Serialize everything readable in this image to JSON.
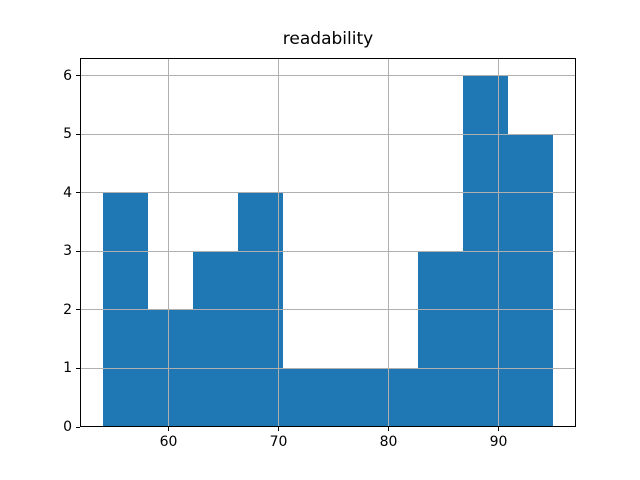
{
  "window": {
    "kind": "matplotlib-figure",
    "background": "#ffffff"
  },
  "chart_data": {
    "type": "bar",
    "subtype": "histogram",
    "title": "readability",
    "xlabel": "",
    "ylabel": "",
    "bin_edges": [
      54.0,
      58.1,
      62.2,
      66.3,
      70.4,
      74.5,
      78.6,
      82.7,
      86.8,
      90.9,
      95.0
    ],
    "values": [
      4,
      2,
      3,
      4,
      1,
      1,
      1,
      3,
      6,
      5
    ],
    "xlim": [
      51.95,
      97.05
    ],
    "ylim": [
      0,
      6.3
    ],
    "xticks": [
      60,
      70,
      80,
      90
    ],
    "yticks": [
      0,
      1,
      2,
      3,
      4,
      5,
      6
    ],
    "grid": true,
    "grid_above_bars": true,
    "legend": null,
    "colors": {
      "bar": "#1f77b4",
      "grid": "#b0b0b0",
      "spine": "#000000",
      "tick": "#000000",
      "text": "#000000",
      "background": "#ffffff"
    }
  }
}
